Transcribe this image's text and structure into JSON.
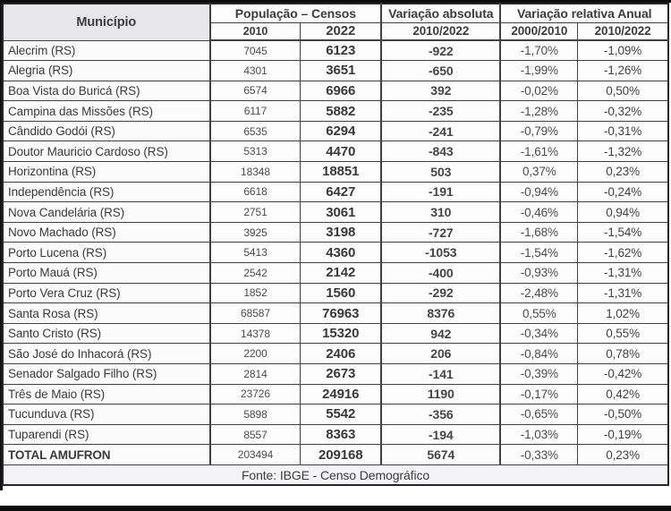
{
  "colors": {
    "frame_edge": "#0c0c0c",
    "table_border": "#414141",
    "municipio_header_bg": "#e7e7e9",
    "cell_bg": "#fdfdfd",
    "text": "#3c3c3c"
  },
  "chart_data": {
    "type": "table",
    "header": {
      "municipio": "Município",
      "populacao_censos": "População – Censos",
      "variacao_absoluta": "Variação absoluta",
      "variacao_relativa_anual": "Variação relativa Anual",
      "sub_2010": "2010",
      "sub_2022": "2022",
      "sub_va_periodo": "2010/2022",
      "sub_vr_2000_2010": "2000/2010",
      "sub_vr_2010_2022": "2010/2022"
    },
    "rows": [
      [
        "Alecrim (RS)",
        "7045",
        "6123",
        "-922",
        "-1,70%",
        "-1,09%"
      ],
      [
        "Alegria (RS)",
        "4301",
        "3651",
        "-650",
        "-1,99%",
        "-1,26%"
      ],
      [
        "Boa Vista do Buricá (RS)",
        "6574",
        "6966",
        "392",
        "-0,02%",
        "0,50%"
      ],
      [
        "Campina das Missões (RS)",
        "6117",
        "5882",
        "-235",
        "-1,28%",
        "-0,32%"
      ],
      [
        "Cândido Godói (RS)",
        "6535",
        "6294",
        "-241",
        "-0,79%",
        "-0,31%"
      ],
      [
        "Doutor Mauricio Cardoso (RS)",
        "5313",
        "4470",
        "-843",
        "-1,61%",
        "-1,32%"
      ],
      [
        "Horizontina (RS)",
        "18348",
        "18851",
        "503",
        "0,37%",
        "0,23%"
      ],
      [
        "Independência (RS)",
        "6618",
        "6427",
        "-191",
        "-0,94%",
        "-0,24%"
      ],
      [
        "Nova Candelária (RS)",
        "2751",
        "3061",
        "310",
        "-0,46%",
        "0,94%"
      ],
      [
        "Novo Machado (RS)",
        "3925",
        "3198",
        "-727",
        "-1,68%",
        "-1,54%"
      ],
      [
        "Porto Lucena (RS)",
        "5413",
        "4360",
        "-1053",
        "-1,54%",
        "-1,62%"
      ],
      [
        "Porto Mauá (RS)",
        "2542",
        "2142",
        "-400",
        "-0,93%",
        "-1,31%"
      ],
      [
        "Porto Vera Cruz (RS)",
        "1852",
        "1560",
        "-292",
        "-2,48%",
        "-1,31%"
      ],
      [
        "Santa Rosa (RS)",
        "68587",
        "76963",
        "8376",
        "0,55%",
        "1,02%"
      ],
      [
        "Santo Cristo (RS)",
        "14378",
        "15320",
        "942",
        "-0,34%",
        "0,55%"
      ],
      [
        "São José do Inhacorá (RS)",
        "2200",
        "2406",
        "206",
        "-0,84%",
        "0,78%"
      ],
      [
        "Senador Salgado Filho (RS)",
        "2814",
        "2673",
        "-141",
        "-0,39%",
        "-0,42%"
      ],
      [
        "Três de Maio (RS)",
        "23726",
        "24916",
        "1190",
        "-0,17%",
        "0,42%"
      ],
      [
        "Tucunduva (RS)",
        "5898",
        "5542",
        "-356",
        "-0,65%",
        "-0,50%"
      ],
      [
        "Tuparendi (RS)",
        "8557",
        "8363",
        "-194",
        "-1,03%",
        "-0,19%"
      ],
      [
        "TOTAL AMUFRON",
        "203494",
        "209168",
        "5674",
        "-0,33%",
        "0,23%"
      ]
    ],
    "footer": "Fonte: IBGE - Censo Demográfico"
  }
}
